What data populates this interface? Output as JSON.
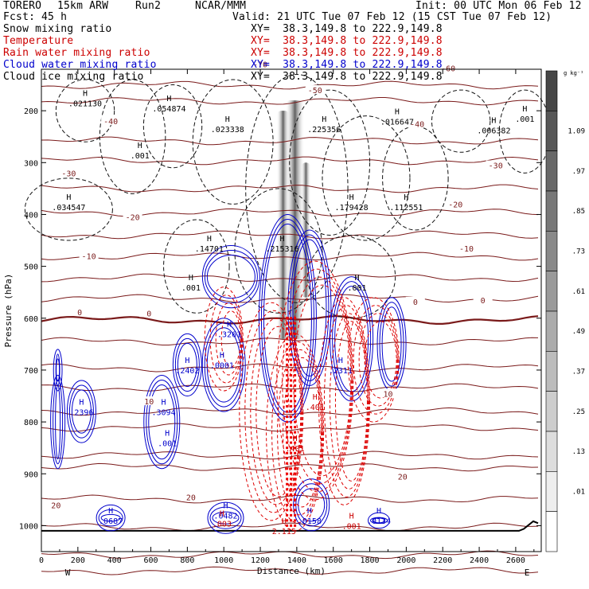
{
  "header": {
    "model": "TORERO",
    "resolution": "15km ARW",
    "run": "Run2",
    "org": "NCAR/MMM",
    "init": "Init: 00 UTC Mon 06 Feb 12",
    "fcst": "Fcst:",
    "fcst_hours": "45 h",
    "valid": "Valid: 21 UTC Tue 07 Feb 12 (15 CST Tue 07 Feb 12)"
  },
  "fields": [
    {
      "name": "Snow mixing ratio",
      "color": "#000000",
      "xy": "XY=  38.3,149.8 to 222.9,149.8"
    },
    {
      "name": "Temperature",
      "color": "#cc0000",
      "xy": "XY=  38.3,149.8 to 222.9,149.8"
    },
    {
      "name": "Rain water mixing ratio",
      "color": "#cc0000",
      "xy": "XY=  38.3,149.8 to 222.9,149.8"
    },
    {
      "name": "Cloud water mixing ratio",
      "color": "#0000cc",
      "xy": "XY=  38.3,149.8 to 222.9,149.8"
    },
    {
      "name": "Cloud ice mixing ratio",
      "color": "#000000",
      "xy": "XY=  38.3,149.8 to 222.9,149.8"
    }
  ],
  "chart_data": {
    "type": "contour",
    "xlabel": "Distance (km)",
    "ylabel": "Pressure (hPa)",
    "x_ticks": [
      "0",
      "200",
      "400",
      "600",
      "800",
      "1000",
      "1200",
      "1400",
      "1600",
      "1800",
      "2000",
      "2200",
      "2400",
      "2600"
    ],
    "y_ticks": [
      "200",
      "300",
      "400",
      "500",
      "600",
      "700",
      "800",
      "900",
      "1000"
    ],
    "xlim": [
      0,
      2740
    ],
    "ylim": [
      1050,
      120
    ],
    "x_side_labels": {
      "left": "W",
      "right": "E"
    },
    "colorbar": {
      "unit": "g kg⁻¹",
      "levels": [
        "1.09",
        ".97",
        ".85",
        ".73",
        ".61",
        ".49",
        ".37",
        ".25",
        ".13",
        ".01"
      ]
    },
    "temperature_levels": [
      {
        "label": "-70",
        "x": 1200,
        "p": 110
      },
      {
        "label": "-60",
        "x": 2230,
        "p": 118
      },
      {
        "label": "-50",
        "x": 1500,
        "p": 160
      },
      {
        "label": "-40",
        "x": 380,
        "p": 220
      },
      {
        "label": "-40",
        "x": 2060,
        "p": 225
      },
      {
        "label": "-30",
        "x": 150,
        "p": 320
      },
      {
        "label": "-30",
        "x": 2490,
        "p": 305
      },
      {
        "label": "-20",
        "x": 500,
        "p": 405
      },
      {
        "label": "-20",
        "x": 2270,
        "p": 380
      },
      {
        "label": "-10",
        "x": 260,
        "p": 480
      },
      {
        "label": "-10",
        "x": 2330,
        "p": 465
      },
      {
        "label": "0",
        "x": 210,
        "p": 588
      },
      {
        "label": "0",
        "x": 590,
        "p": 590
      },
      {
        "label": "0",
        "x": 2050,
        "p": 568
      },
      {
        "label": "0",
        "x": 2420,
        "p": 565
      },
      {
        "label": "10",
        "x": 590,
        "p": 760
      },
      {
        "label": "10",
        "x": 1900,
        "p": 745
      },
      {
        "label": "20",
        "x": 80,
        "p": 960
      },
      {
        "label": "20",
        "x": 820,
        "p": 945
      },
      {
        "label": "20",
        "x": 1980,
        "p": 905
      }
    ],
    "maxima_labels": [
      {
        "label": ".021130",
        "x": 240,
        "p": 190,
        "color": "#000000"
      },
      {
        "label": ".054874",
        "x": 700,
        "p": 200,
        "color": "#000000"
      },
      {
        "label": ".023338",
        "x": 1020,
        "p": 240,
        "color": "#000000"
      },
      {
        "label": ".225356",
        "x": 1550,
        "p": 240,
        "color": "#000000"
      },
      {
        "label": ".016647",
        "x": 1950,
        "p": 225,
        "color": "#000000"
      },
      {
        "label": ".006382",
        "x": 2480,
        "p": 242,
        "color": "#000000"
      },
      {
        "label": ".001",
        "x": 2650,
        "p": 220,
        "color": "#000000"
      },
      {
        "label": ".001",
        "x": 540,
        "p": 290,
        "color": "#000000"
      },
      {
        "label": ".034547",
        "x": 150,
        "p": 390,
        "color": "#000000"
      },
      {
        "label": ".179428",
        "x": 1700,
        "p": 390,
        "color": "#000000"
      },
      {
        "label": ".112551",
        "x": 2000,
        "p": 390,
        "color": "#000000"
      },
      {
        "label": ".14701",
        "x": 920,
        "p": 470,
        "color": "#000000"
      },
      {
        "label": ".215316",
        "x": 1320,
        "p": 470,
        "color": "#000000"
      },
      {
        "label": ".001",
        "x": 820,
        "p": 545,
        "color": "#000000"
      },
      {
        "label": ".001",
        "x": 1730,
        "p": 545,
        "color": "#000000"
      },
      {
        "label": ".3261",
        "x": 1030,
        "p": 635,
        "color": "#0000cc"
      },
      {
        "label": ".2402",
        "x": 800,
        "p": 705,
        "color": "#0000cc"
      },
      {
        "label": ".0001",
        "x": 990,
        "p": 695,
        "color": "#0000cc"
      },
      {
        "label": ".2311",
        "x": 1640,
        "p": 705,
        "color": "#0000cc"
      },
      {
        "label": ".2396",
        "x": 220,
        "p": 785,
        "color": "#0000cc"
      },
      {
        "label": ".3094",
        "x": 670,
        "p": 785,
        "color": "#0000cc"
      },
      {
        "label": ".001",
        "x": 690,
        "p": 845,
        "color": "#0000cc"
      },
      {
        "label": ".0687",
        "x": 380,
        "p": 995,
        "color": "#0000cc"
      },
      {
        "label": ".0482",
        "x": 1010,
        "p": 985,
        "color": "#0000cc"
      },
      {
        "label": ".0158",
        "x": 1470,
        "p": 995,
        "color": "#0000cc"
      },
      {
        "label": ".0134",
        "x": 1850,
        "p": 995,
        "color": "#0000cc"
      },
      {
        "label": ".401",
        "x": 1500,
        "p": 775,
        "color": "#cc0000"
      },
      {
        "label": ".401",
        "x": 1390,
        "p": 855,
        "color": "#cc0000"
      },
      {
        "label": ".003",
        "x": 990,
        "p": 1000,
        "color": "#cc0000"
      },
      {
        "label": "2.115",
        "x": 1330,
        "p": 1015,
        "color": "#cc0000"
      },
      {
        "label": ".001",
        "x": 1700,
        "p": 1005,
        "color": "#cc0000"
      }
    ]
  }
}
